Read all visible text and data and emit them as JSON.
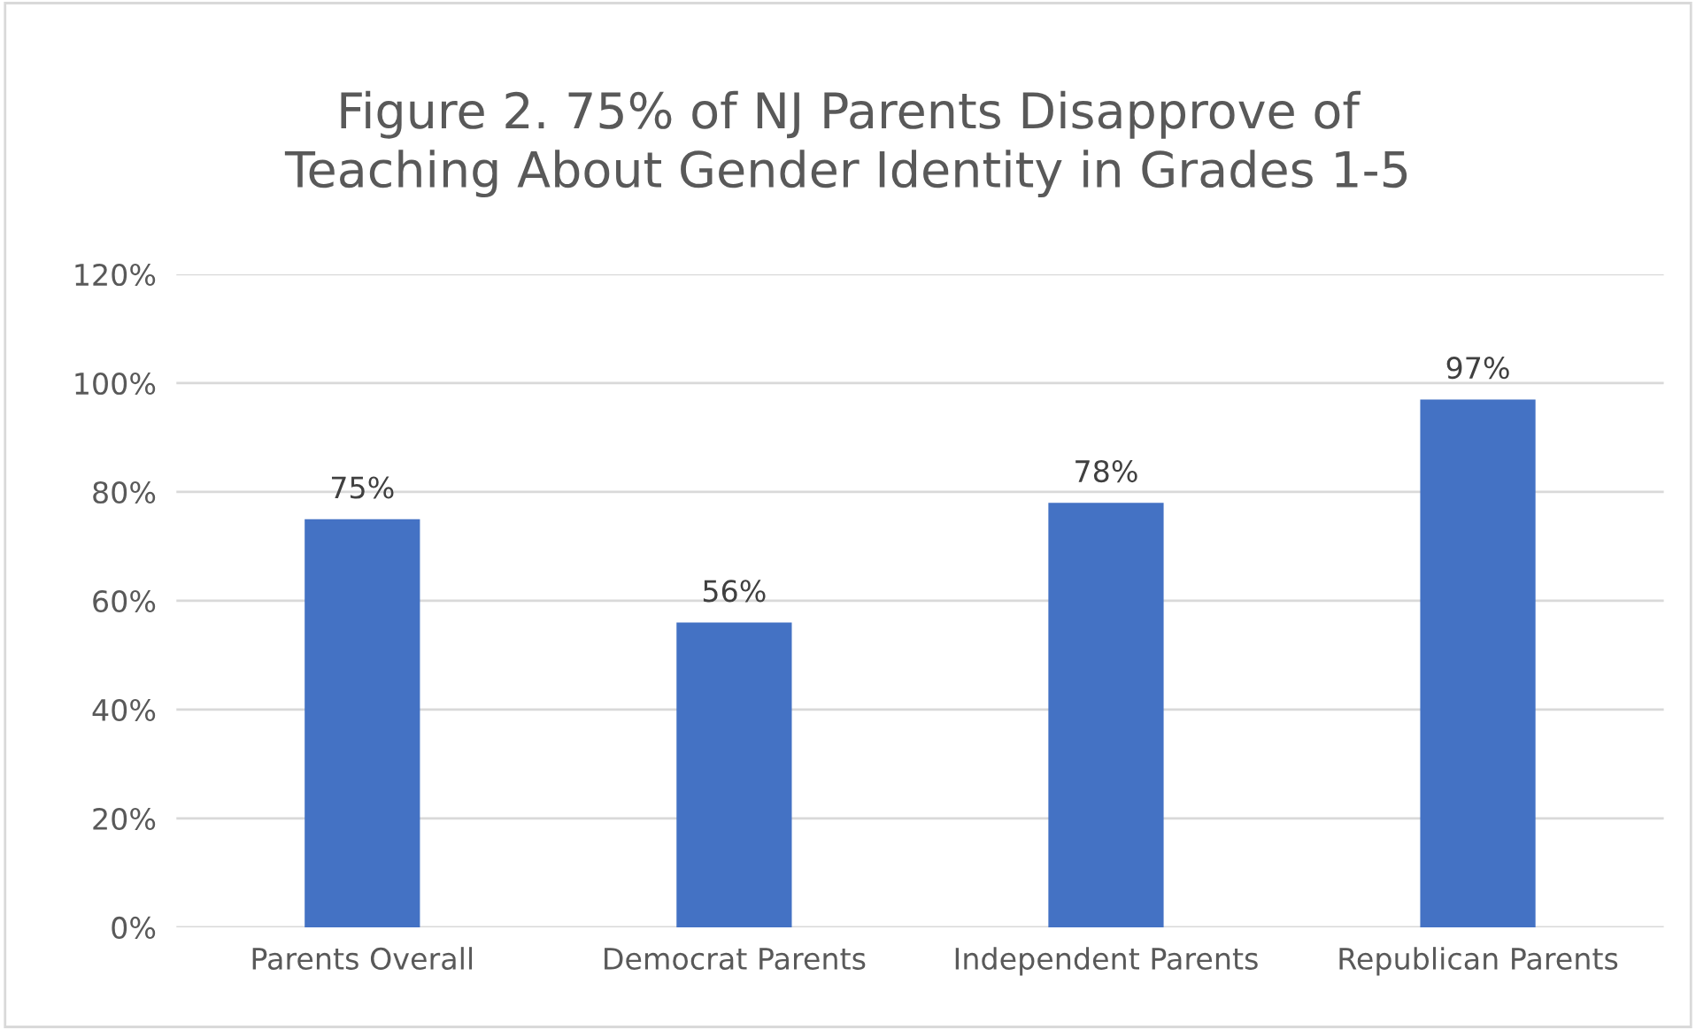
{
  "chart_data": {
    "type": "bar",
    "title": "Figure 2. 75% of NJ Parents Disapprove of\nTeaching About Gender Identity in Grades 1-5",
    "categories": [
      "Parents Overall",
      "Democrat Parents",
      "Independent Parents",
      "Republican Parents"
    ],
    "values": [
      75,
      56,
      78,
      97
    ],
    "value_labels": [
      "75%",
      "56%",
      "78%",
      "97%"
    ],
    "color": "#4472c4",
    "ylim": [
      0,
      120
    ],
    "yticks": [
      {
        "value": 0,
        "label": "0%"
      },
      {
        "value": 20,
        "label": "20%"
      },
      {
        "value": 40,
        "label": "40%"
      },
      {
        "value": 60,
        "label": "60%"
      },
      {
        "value": 80,
        "label": "80%"
      },
      {
        "value": 100,
        "label": "100%"
      },
      {
        "value": 120,
        "label": "120%"
      }
    ],
    "grid": "y"
  }
}
